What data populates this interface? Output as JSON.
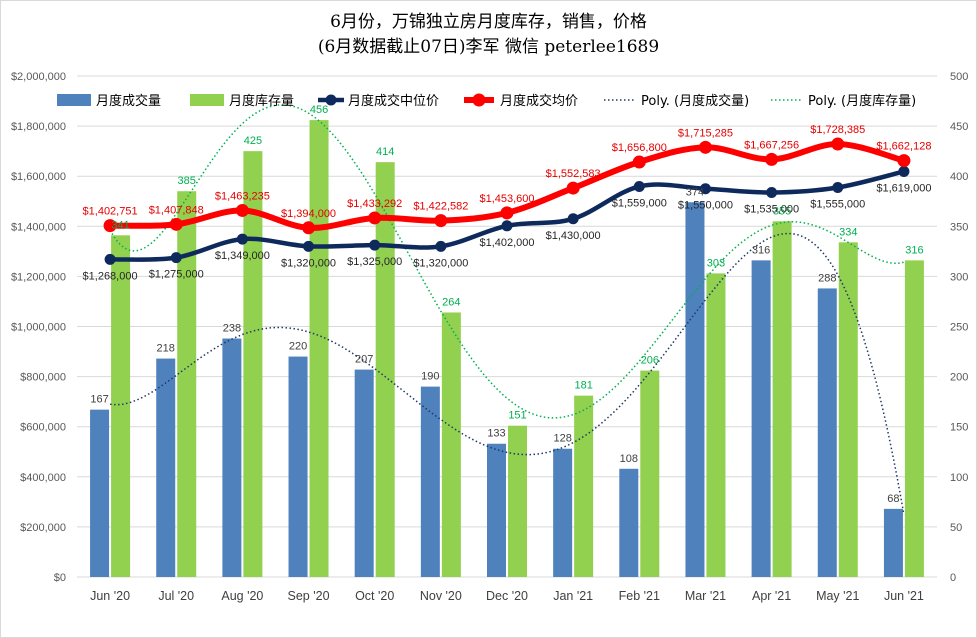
{
  "title": {
    "line1": "6月份，万锦独立房月度库存，销售，价格",
    "line2": "(6月数据截止07日)李军  微信 peterlee1689"
  },
  "colors": {
    "sales_bar": "#4f81bd",
    "inventory_bar": "#92d050",
    "median_line": "#0e2a5c",
    "avg_line": "#ff0000",
    "sales_label": "#404040",
    "inventory_label": "#00b050",
    "avg_label": "#e60000",
    "median_label": "#262626",
    "poly_sales": "#1f3864",
    "poly_inventory": "#00b050",
    "gridline": "#d9d9d9"
  },
  "chart_data": {
    "type": "bar",
    "categories": [
      "Jun '20",
      "Jul '20",
      "Aug '20",
      "Sep '20",
      "Oct '20",
      "Nov '20",
      "Dec '20",
      "Jan '21",
      "Feb '21",
      "Mar '21",
      "Apr '21",
      "May '21",
      "Jun '21"
    ],
    "y_left": {
      "min": 0,
      "max": 2000000,
      "step": 200000,
      "ticks": [
        "$0",
        "$200,000",
        "$400,000",
        "$600,000",
        "$800,000",
        "$1,000,000",
        "$1,200,000",
        "$1,400,000",
        "$1,600,000",
        "$1,800,000",
        "$2,000,000"
      ]
    },
    "y_right": {
      "min": 0,
      "max": 500,
      "step": 50,
      "ticks": [
        "0",
        "50",
        "100",
        "150",
        "200",
        "250",
        "300",
        "350",
        "400",
        "450",
        "500"
      ]
    },
    "grid": true,
    "legend_position": "top",
    "series": [
      {
        "name": "月度成交量",
        "type": "bar",
        "axis": "right",
        "values": [
          167,
          218,
          238,
          220,
          207,
          190,
          133,
          128,
          108,
          374,
          316,
          288,
          68
        ],
        "labels": [
          "167",
          "218",
          "238",
          "220",
          "207",
          "190",
          "133",
          "128",
          "108",
          "374",
          "316",
          "288",
          "68"
        ]
      },
      {
        "name": "月度库存量",
        "type": "bar",
        "axis": "right",
        "values": [
          341,
          385,
          425,
          456,
          414,
          264,
          151,
          181,
          206,
          303,
          355,
          334,
          316
        ],
        "labels": [
          "341",
          "385",
          "425",
          "456",
          "414",
          "264",
          "151",
          "181",
          "206",
          "303",
          "355",
          "334",
          "316"
        ]
      },
      {
        "name": "月度成交中位价",
        "type": "line",
        "axis": "left",
        "values": [
          1268000,
          1275000,
          1349000,
          1320000,
          1325000,
          1320000,
          1402000,
          1430000,
          1559000,
          1550000,
          1535000,
          1555000,
          1619000
        ],
        "labels": [
          "$1,268,000",
          "$1,275,000",
          "$1,349,000",
          "$1,320,000",
          "$1,325,000",
          "$1,320,000",
          "$1,402,000",
          "$1,430,000",
          "$1,559,000",
          "$1,550,000",
          "$1,535,000",
          "$1,555,000",
          "$1,619,000"
        ]
      },
      {
        "name": "月度成交均价",
        "type": "line",
        "axis": "left",
        "values": [
          1402751,
          1407848,
          1463235,
          1394000,
          1433292,
          1422582,
          1453600,
          1552583,
          1656800,
          1715285,
          1667256,
          1728385,
          1662128
        ],
        "labels": [
          "$1,402,751",
          "$1,407,848",
          "$1,463,235",
          "$1,394,000",
          "$1,433,292",
          "$1,422,582",
          "$1,453,600",
          "$1,552,583",
          "$1,656,800",
          "$1,715,285",
          "$1,667,256",
          "$1,728,385",
          "$1,662,128"
        ]
      }
    ],
    "trendlines": [
      {
        "name": "Poly. (月度成交量)",
        "of": "月度成交量",
        "style": "dotted"
      },
      {
        "name": "Poly. (月度库存量)",
        "of": "月度库存量",
        "style": "dotted"
      }
    ]
  }
}
